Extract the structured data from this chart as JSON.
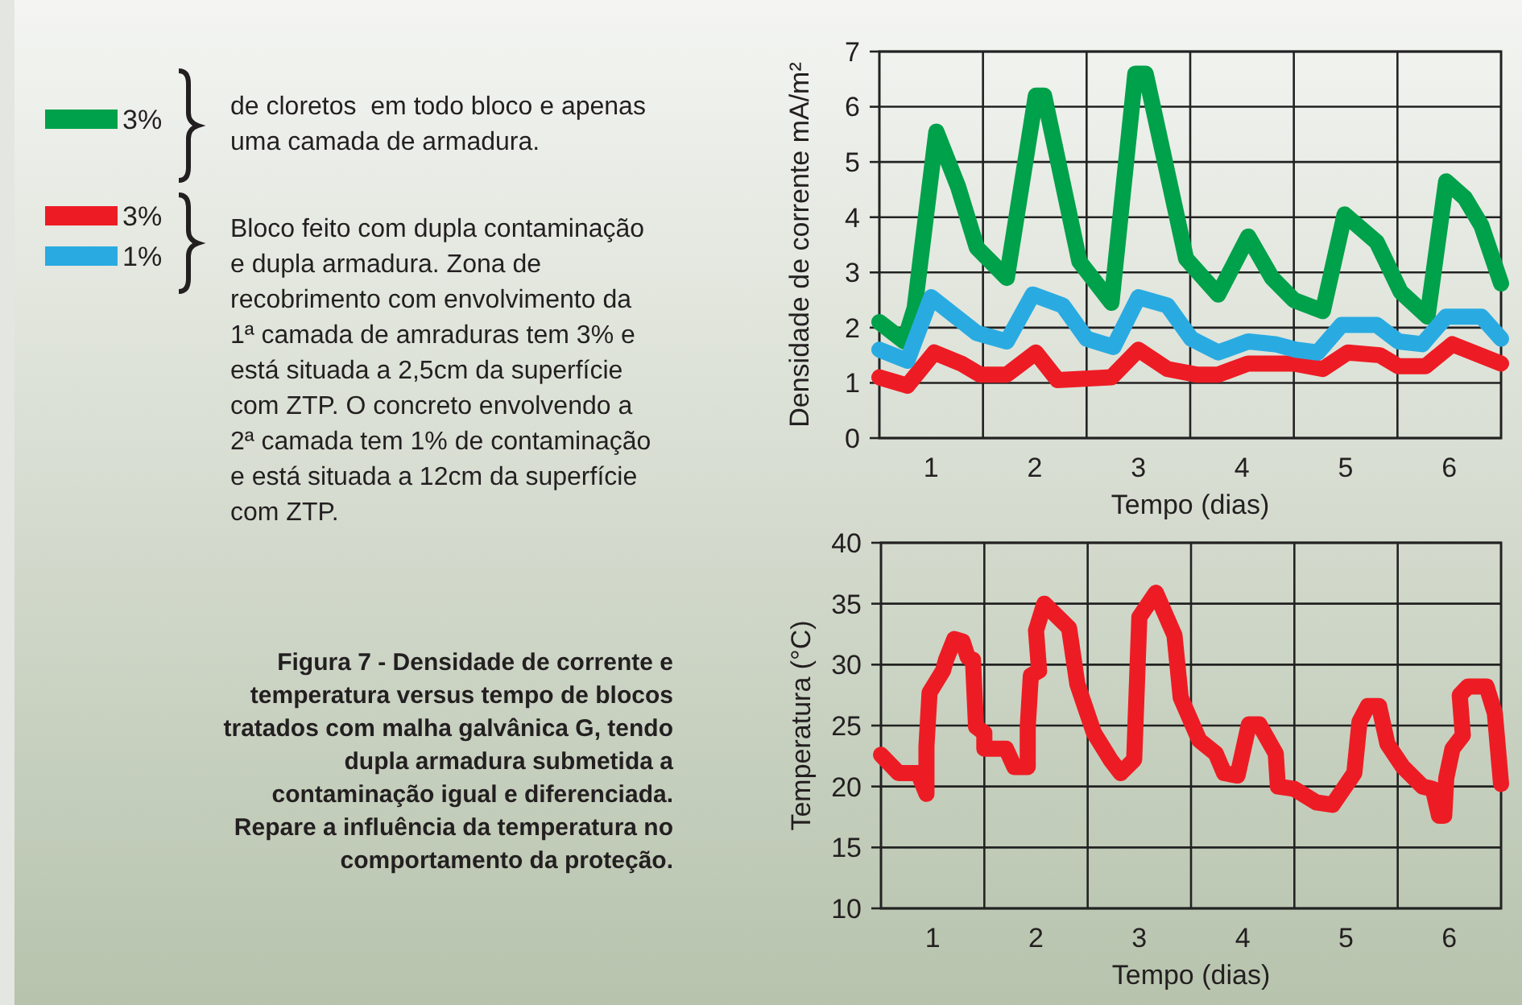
{
  "chart_data": [
    {
      "type": "line",
      "xlabel": "Tempo (dias)",
      "ylabel": "Densidade de corrente mA/m²",
      "xlim": [
        0.5,
        6.5
      ],
      "xticks": [
        1,
        2,
        3,
        4,
        5,
        6,
        {
          "value": 1.5,
          "label": null
        },
        {
          "value": 2.5,
          "label": null
        },
        {
          "value": 3.5,
          "label": null
        },
        {
          "value": 4.5,
          "label": null
        },
        {
          "value": 5.5,
          "label": null
        }
      ],
      "ylim": [
        0,
        7
      ],
      "yticks": [
        0,
        1,
        2,
        3,
        4,
        5,
        6,
        7
      ],
      "grid": true,
      "legend": "left",
      "line_style": "solid",
      "annotations": [
        "de cloretos  em todo bloco e apenas\numa camada de armadura.",
        "Bloco feito com dupla contaminação\ne dupla armadura. Zona de\nrecobrimento com envolvimento da\n1ª camada de amraduras tem 3% e\nestá situada a 2,5cm da superfície\ncom ZTP. O concreto envolvendo a\n2ª camada tem 1% de contaminação\ne está situada a 12cm da superfície\ncom ZTP.",
        "Figura 7 - Densidade de corrente e\ntemperatura versus tempo de blocos\ntratados com malha galvânica G, tendo\ndupla armadura submetida a\ncontaminação igual e diferenciada.\nRepare a influência da temperatura no\ncomportamento da proteção."
      ],
      "series": [
        {
          "name": "3%",
          "color": "#00a14b",
          "x": [
            0.5,
            0.74,
            0.84,
            1.05,
            1.26,
            1.44,
            1.73,
            2.01,
            2.09,
            2.43,
            2.74,
            2.97,
            3.07,
            3.46,
            3.77,
            4.06,
            4.29,
            4.5,
            4.78,
            4.99,
            5.3,
            5.53,
            5.79,
            5.97,
            6.15,
            6.31,
            6.5
          ],
          "values": [
            2.1,
            1.75,
            2.35,
            5.55,
            4.55,
            3.45,
            2.9,
            6.2,
            6.2,
            3.2,
            2.45,
            6.6,
            6.6,
            3.25,
            2.6,
            3.65,
            2.9,
            2.5,
            2.3,
            4.05,
            3.55,
            2.65,
            2.2,
            4.65,
            4.35,
            3.85,
            2.8
          ]
        },
        {
          "name": "3%",
          "color": "#ed1c24",
          "x": [
            0.5,
            0.77,
            1.03,
            1.29,
            1.47,
            1.73,
            2.01,
            2.22,
            2.74,
            3.0,
            3.28,
            3.56,
            3.77,
            4.06,
            4.5,
            4.78,
            5.02,
            5.33,
            5.51,
            5.77,
            6.03,
            6.5
          ],
          "values": [
            1.1,
            0.95,
            1.55,
            1.35,
            1.15,
            1.15,
            1.55,
            1.05,
            1.1,
            1.6,
            1.25,
            1.15,
            1.15,
            1.35,
            1.35,
            1.25,
            1.55,
            1.5,
            1.3,
            1.3,
            1.7,
            1.35
          ]
        },
        {
          "name": "1%",
          "color": "#29abe2",
          "x": [
            0.5,
            0.77,
            1.0,
            1.44,
            1.73,
            1.98,
            2.27,
            2.5,
            2.76,
            3.0,
            3.28,
            3.51,
            3.77,
            4.06,
            4.32,
            4.52,
            4.73,
            4.96,
            5.3,
            5.51,
            5.74,
            5.97,
            6.31,
            6.5
          ],
          "values": [
            1.6,
            1.4,
            2.55,
            1.9,
            1.75,
            2.6,
            2.4,
            1.8,
            1.65,
            2.55,
            2.4,
            1.8,
            1.55,
            1.75,
            1.7,
            1.6,
            1.55,
            2.05,
            2.05,
            1.75,
            1.7,
            2.2,
            2.2,
            1.8
          ]
        }
      ]
    },
    {
      "type": "line",
      "xlabel": "Tempo (dias)",
      "ylabel": "Temperatura (°C)",
      "xlim": [
        0.5,
        6.5
      ],
      "xticks": [
        1,
        2,
        3,
        4,
        5,
        6,
        {
          "value": 1.5,
          "label": null
        },
        {
          "value": 2.5,
          "label": null
        },
        {
          "value": 3.5,
          "label": null
        },
        {
          "value": 4.5,
          "label": null
        },
        {
          "value": 5.5,
          "label": null
        }
      ],
      "ylim": [
        10,
        40
      ],
      "yticks": [
        10,
        15,
        20,
        25,
        30,
        35,
        40
      ],
      "grid": true,
      "line_style": "solid",
      "series": [
        {
          "color": "#ed1c24",
          "x": [
            0.5,
            0.67,
            0.86,
            0.94,
            0.94,
            0.97,
            1.1,
            1.13,
            1.21,
            1.29,
            1.34,
            1.39,
            1.42,
            1.5,
            1.5,
            1.71,
            1.79,
            1.92,
            1.92,
            1.95,
            2.03,
            2.0,
            2.08,
            2.32,
            2.4,
            2.56,
            2.72,
            2.82,
            2.95,
            3.0,
            3.16,
            3.34,
            3.4,
            3.58,
            3.74,
            3.82,
            3.95,
            4.06,
            4.16,
            4.32,
            4.34,
            4.5,
            4.71,
            4.87,
            5.08,
            5.13,
            5.21,
            5.32,
            5.4,
            5.55,
            5.74,
            5.84,
            5.9,
            5.95,
            5.97,
            6.03,
            6.13,
            6.1,
            6.18,
            6.36,
            6.44,
            6.47,
            6.5
          ],
          "values": [
            22.6,
            21.1,
            21.1,
            19.4,
            23.3,
            27.7,
            29.5,
            30.4,
            32.1,
            31.9,
            30.6,
            30.4,
            24.9,
            24.4,
            23.1,
            23.1,
            21.6,
            21.6,
            24.9,
            29.1,
            29.5,
            32.8,
            35,
            33,
            28.4,
            24.4,
            22.2,
            21.1,
            22.2,
            33.9,
            35.9,
            32.4,
            27.3,
            23.8,
            22.7,
            21.1,
            20.9,
            25.1,
            25.1,
            22.7,
            20,
            19.8,
            18.7,
            18.5,
            21.1,
            25.3,
            26.6,
            26.6,
            23.5,
            21.6,
            20,
            19.8,
            17.6,
            17.6,
            20.7,
            23.1,
            24.2,
            27.5,
            28.2,
            28.2,
            26,
            23.1,
            20.2
          ]
        }
      ]
    }
  ]
}
